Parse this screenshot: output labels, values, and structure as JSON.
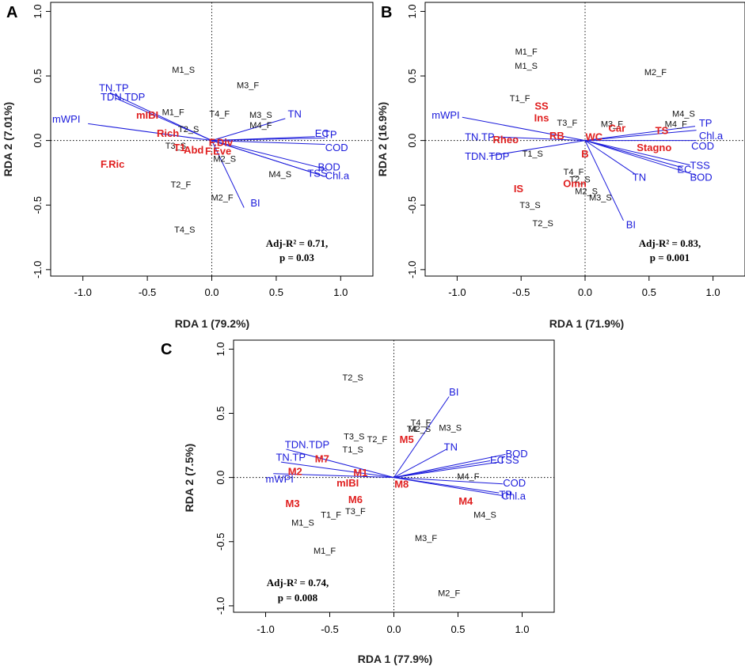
{
  "colors": {
    "env": "#1a1adb",
    "species": "#e02020",
    "axis": "#000000"
  },
  "chart_data": [
    {
      "type": "scatter",
      "panel": "A",
      "xlabel": "RDA 1 (79.2%)",
      "ylabel": "RDA 2 (7.01%)",
      "xlim": [
        -1.25,
        1.25
      ],
      "ylim": [
        -1.05,
        1.07
      ],
      "xticks": [
        "-1.0",
        "-0.5",
        "0.0",
        "0.5",
        "1.0"
      ],
      "yticks": [
        "-1.0",
        "-0.5",
        "0.0",
        "0.5",
        "1.0"
      ],
      "stat": [
        "Adj-R² = 0.71,",
        "p = 0.03"
      ],
      "sites": [
        {
          "label": "M1_S",
          "x": -0.22,
          "y": 0.55
        },
        {
          "label": "M1_F",
          "x": -0.3,
          "y": 0.22
        },
        {
          "label": "M3_F",
          "x": 0.28,
          "y": 0.43
        },
        {
          "label": "T4_F",
          "x": 0.06,
          "y": 0.21
        },
        {
          "label": "M3_S",
          "x": 0.38,
          "y": 0.2
        },
        {
          "label": "M4_F",
          "x": 0.38,
          "y": 0.12
        },
        {
          "label": "T2_S",
          "x": -0.18,
          "y": 0.09
        },
        {
          "label": "T3_S",
          "x": -0.28,
          "y": -0.04
        },
        {
          "label": "M2_S",
          "x": 0.1,
          "y": -0.14
        },
        {
          "label": "M4_S",
          "x": 0.53,
          "y": -0.26
        },
        {
          "label": "T2_F",
          "x": -0.24,
          "y": -0.34
        },
        {
          "label": "M2_F",
          "x": 0.08,
          "y": -0.44
        },
        {
          "label": "T4_S",
          "x": -0.21,
          "y": -0.69
        }
      ],
      "env": [
        {
          "label": "TN.TP",
          "x": -0.79,
          "y": 0.37,
          "lx": -0.76,
          "ly": 0.41,
          "anchor": "middle"
        },
        {
          "label": "TDN.TDP",
          "x": -0.75,
          "y": 0.33,
          "lx": -0.69,
          "ly": 0.34,
          "anchor": "middle"
        },
        {
          "label": "mWPI",
          "x": -0.96,
          "y": 0.13,
          "lx": -1.02,
          "ly": 0.17,
          "anchor": "end"
        },
        {
          "label": "TN",
          "x": 0.57,
          "y": 0.17,
          "lx": 0.59,
          "ly": 0.21,
          "anchor": "start"
        },
        {
          "label": "EC",
          "x": 0.8,
          "y": 0.03,
          "lx": 0.8,
          "ly": 0.06,
          "anchor": "start"
        },
        {
          "label": "TP",
          "x": 0.88,
          "y": 0.02,
          "lx": 0.92,
          "ly": 0.05,
          "anchor": "middle"
        },
        {
          "label": "COD",
          "x": 0.88,
          "y": -0.03,
          "lx": 0.88,
          "ly": -0.05,
          "anchor": "start"
        },
        {
          "label": "BOD",
          "x": 0.88,
          "y": -0.22,
          "lx": 0.91,
          "ly": -0.2,
          "anchor": "middle"
        },
        {
          "label": "TSS",
          "x": 0.85,
          "y": -0.27,
          "lx": 0.82,
          "ly": -0.25,
          "anchor": "middle"
        },
        {
          "label": "Chl.a",
          "x": 0.88,
          "y": -0.28,
          "lx": 0.88,
          "ly": -0.27,
          "anchor": "start"
        },
        {
          "label": "BI",
          "x": 0.25,
          "y": -0.52,
          "lx": 0.3,
          "ly": -0.48,
          "anchor": "start"
        }
      ],
      "species": [
        {
          "label": "mIBI",
          "x": -0.5,
          "y": 0.2
        },
        {
          "label": "Rich",
          "x": -0.34,
          "y": 0.06
        },
        {
          "label": "F.Div",
          "x": 0.07,
          "y": -0.01
        },
        {
          "label": "F.Eve",
          "x": 0.05,
          "y": -0.08
        },
        {
          "label": "T1",
          "x": -0.25,
          "y": -0.05
        },
        {
          "label": "F.Ric",
          "x": -0.77,
          "y": -0.18
        },
        {
          "label": "Abd",
          "x": -0.14,
          "y": -0.07
        }
      ]
    },
    {
      "type": "scatter",
      "panel": "B",
      "xlabel": "RDA 1 (71.9%)",
      "ylabel": "RDA 2 (16.9%)",
      "xlim": [
        -1.25,
        1.25
      ],
      "ylim": [
        -1.05,
        1.07
      ],
      "xticks": [
        "-1.0",
        "-0.5",
        "0.0",
        "0.5",
        "1.0"
      ],
      "yticks": [
        "-1.0",
        "-0.5",
        "0.0",
        "0.5",
        "1.0"
      ],
      "stat": [
        "Adj-R² = 0.83,",
        "p = 0.001"
      ],
      "sites": [
        {
          "label": "M1_F",
          "x": -0.46,
          "y": 0.69
        },
        {
          "label": "M1_S",
          "x": -0.46,
          "y": 0.58
        },
        {
          "label": "M2_F",
          "x": 0.55,
          "y": 0.53
        },
        {
          "label": "T1_F",
          "x": -0.51,
          "y": 0.33
        },
        {
          "label": "T3_F",
          "x": -0.14,
          "y": 0.14
        },
        {
          "label": "M3_F",
          "x": 0.21,
          "y": 0.13
        },
        {
          "label": "M4_S",
          "x": 0.77,
          "y": 0.21
        },
        {
          "label": "M4_F",
          "x": 0.71,
          "y": 0.13
        },
        {
          "label": "T1_S",
          "x": -0.41,
          "y": -0.1
        },
        {
          "label": "T4_F",
          "x": -0.09,
          "y": -0.24
        },
        {
          "label": "T2_S",
          "x": -0.04,
          "y": -0.3
        },
        {
          "label": "M2_S",
          "x": 0.01,
          "y": -0.39
        },
        {
          "label": "M3_S",
          "x": 0.12,
          "y": -0.44
        },
        {
          "label": "T3_S",
          "x": -0.43,
          "y": -0.5
        },
        {
          "label": "T2_S",
          "x": -0.33,
          "y": -0.64
        }
      ],
      "env": [
        {
          "label": "mWPI",
          "x": -0.96,
          "y": 0.18,
          "lx": -0.98,
          "ly": 0.2,
          "anchor": "end"
        },
        {
          "label": "TN.TP",
          "x": -0.73,
          "y": 0.03,
          "lx": -0.94,
          "ly": 0.03,
          "anchor": "start"
        },
        {
          "label": "TDN.TDP",
          "x": -0.75,
          "y": -0.12,
          "lx": -0.94,
          "ly": -0.12,
          "anchor": "start"
        },
        {
          "label": "TP",
          "x": 0.86,
          "y": 0.11,
          "lx": 0.89,
          "ly": 0.14,
          "anchor": "start"
        },
        {
          "label": "Chl.a",
          "x": 0.87,
          "y": 0.08,
          "lx": 0.89,
          "ly": 0.04,
          "anchor": "start"
        },
        {
          "label": "COD",
          "x": 0.87,
          "y": 0.0,
          "lx": 0.83,
          "ly": -0.04,
          "anchor": "start"
        },
        {
          "label": "TSS",
          "x": 0.82,
          "y": -0.19,
          "lx": 0.82,
          "ly": -0.19,
          "anchor": "start"
        },
        {
          "label": "EC",
          "x": 0.76,
          "y": -0.21,
          "lx": 0.72,
          "ly": -0.22,
          "anchor": "start"
        },
        {
          "label": "BOD",
          "x": 0.87,
          "y": -0.27,
          "lx": 0.82,
          "ly": -0.28,
          "anchor": "start"
        },
        {
          "label": "TN",
          "x": 0.39,
          "y": -0.26,
          "lx": 0.37,
          "ly": -0.28,
          "anchor": "start"
        },
        {
          "label": "BI",
          "x": 0.3,
          "y": -0.62,
          "lx": 0.32,
          "ly": -0.65,
          "anchor": "start"
        }
      ],
      "species": [
        {
          "label": "SS",
          "x": -0.34,
          "y": 0.27
        },
        {
          "label": "Ins",
          "x": -0.34,
          "y": 0.18
        },
        {
          "label": "Rheo",
          "x": -0.62,
          "y": 0.01
        },
        {
          "label": "RB",
          "x": -0.22,
          "y": 0.04
        },
        {
          "label": "WC",
          "x": 0.07,
          "y": 0.03
        },
        {
          "label": "Car",
          "x": 0.25,
          "y": 0.1
        },
        {
          "label": "TS",
          "x": 0.6,
          "y": 0.08
        },
        {
          "label": "Stagno",
          "x": 0.54,
          "y": -0.05
        },
        {
          "label": "B",
          "x": 0.0,
          "y": -0.1
        },
        {
          "label": "IS",
          "x": -0.52,
          "y": -0.37
        },
        {
          "label": "Omn",
          "x": -0.08,
          "y": -0.33
        }
      ]
    },
    {
      "type": "scatter",
      "panel": "C",
      "xlabel": "RDA 1 (77.9%)",
      "ylabel": "RDA 2 (7.5%)",
      "xlim": [
        -1.25,
        1.25
      ],
      "ylim": [
        -1.05,
        1.07
      ],
      "xticks": [
        "-1.0",
        "-0.5",
        "0.0",
        "0.5",
        "1.0"
      ],
      "yticks": [
        "-1.0",
        "-0.5",
        "0.0",
        "0.5",
        "1.0"
      ],
      "stat": [
        "Adj-R² = 0.74,",
        "p = 0.008"
      ],
      "sites": [
        {
          "label": "T2_S",
          "x": -0.32,
          "y": 0.78
        },
        {
          "label": "T4_F",
          "x": 0.21,
          "y": 0.43
        },
        {
          "label": "T4",
          "x": 0.14,
          "y": 0.38
        },
        {
          "label": "M2_S",
          "x": 0.2,
          "y": 0.38
        },
        {
          "label": "M3_S",
          "x": 0.44,
          "y": 0.39
        },
        {
          "label": "T3_S",
          "x": -0.31,
          "y": 0.32
        },
        {
          "label": "T2_F",
          "x": -0.13,
          "y": 0.3
        },
        {
          "label": "T1_S",
          "x": -0.32,
          "y": 0.22
        },
        {
          "label": "M4_F",
          "x": 0.58,
          "y": 0.01
        },
        {
          "label": "T3_F",
          "x": -0.3,
          "y": -0.26
        },
        {
          "label": "T1_F",
          "x": -0.49,
          "y": -0.29
        },
        {
          "label": "M1_S",
          "x": -0.71,
          "y": -0.35
        },
        {
          "label": "M4_S",
          "x": 0.71,
          "y": -0.29
        },
        {
          "label": "M1_F",
          "x": -0.54,
          "y": -0.57
        },
        {
          "label": "M3_F",
          "x": 0.25,
          "y": -0.47
        },
        {
          "label": "M2_F",
          "x": 0.43,
          "y": -0.9
        }
      ],
      "env": [
        {
          "label": "BI",
          "x": 0.43,
          "y": 0.63,
          "lx": 0.43,
          "ly": 0.67,
          "anchor": "start"
        },
        {
          "label": "TN",
          "x": 0.41,
          "y": 0.22,
          "lx": 0.39,
          "ly": 0.24,
          "anchor": "start"
        },
        {
          "label": "TDN.TDP",
          "x": -0.84,
          "y": 0.22,
          "lx": -0.85,
          "ly": 0.26,
          "anchor": "start"
        },
        {
          "label": "TN.TP",
          "x": -0.88,
          "y": 0.12,
          "lx": -0.92,
          "ly": 0.16,
          "anchor": "start"
        },
        {
          "label": "mWPI",
          "x": -0.94,
          "y": 0.03,
          "lx": -1.0,
          "ly": -0.01,
          "anchor": "start"
        },
        {
          "label": "BOD",
          "x": 0.87,
          "y": 0.18,
          "lx": 0.87,
          "ly": 0.19,
          "anchor": "start"
        },
        {
          "label": "EC",
          "x": 0.75,
          "y": 0.13,
          "lx": 0.75,
          "ly": 0.14,
          "anchor": "start"
        },
        {
          "label": "TSS",
          "x": 0.82,
          "y": 0.12,
          "lx": 0.82,
          "ly": 0.14,
          "anchor": "start"
        },
        {
          "label": "COD",
          "x": 0.85,
          "y": -0.05,
          "lx": 0.85,
          "ly": -0.04,
          "anchor": "start"
        },
        {
          "label": "Chl.a",
          "x": 0.84,
          "y": -0.14,
          "lx": 0.84,
          "ly": -0.14,
          "anchor": "start"
        },
        {
          "label": "TP",
          "x": 0.82,
          "y": -0.12,
          "lx": 0.82,
          "ly": -0.13,
          "anchor": "start"
        }
      ],
      "species": [
        {
          "label": "M5",
          "x": 0.1,
          "y": 0.3
        },
        {
          "label": "M7",
          "x": -0.56,
          "y": 0.15
        },
        {
          "label": "M2",
          "x": -0.77,
          "y": 0.05
        },
        {
          "label": "M1",
          "x": -0.26,
          "y": 0.04
        },
        {
          "label": "mIBI",
          "x": -0.36,
          "y": -0.04
        },
        {
          "label": "M8",
          "x": 0.06,
          "y": -0.05
        },
        {
          "label": "M6",
          "x": -0.3,
          "y": -0.17
        },
        {
          "label": "M3",
          "x": -0.79,
          "y": -0.2
        },
        {
          "label": "M4",
          "x": 0.56,
          "y": -0.18
        }
      ]
    }
  ]
}
